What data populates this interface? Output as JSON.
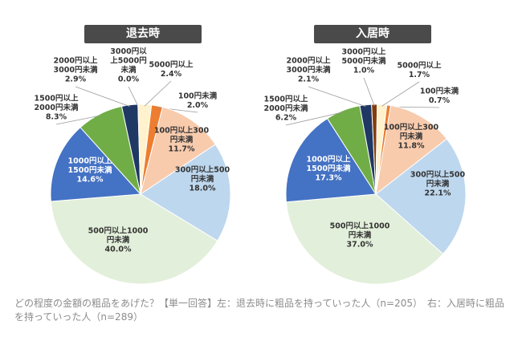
{
  "chart_data": [
    {
      "type": "pie",
      "title": "退去時",
      "slices": [
        {
          "label_lines": [
            "100円未満",
            "2.0%"
          ],
          "value": 2.0,
          "color": "#ed7d31"
        },
        {
          "label_lines": [
            "100円以上300",
            "円未満",
            "11.7%"
          ],
          "value": 11.7,
          "color": "#f8cbad"
        },
        {
          "label_lines": [
            "300円以上500",
            "円未満",
            "18.0%"
          ],
          "value": 18.0,
          "color": "#bdd7ee"
        },
        {
          "label_lines": [
            "500円以上1000",
            "円未満",
            "40.0%"
          ],
          "value": 40.0,
          "color": "#e2efda"
        },
        {
          "label_lines": [
            "1000円以上",
            "1500円未満",
            "14.6%"
          ],
          "value": 14.6,
          "color": "#4472c4"
        },
        {
          "label_lines": [
            "1500円以上",
            "2000円未満",
            "8.3%"
          ],
          "value": 8.3,
          "color": "#70ad47"
        },
        {
          "label_lines": [
            "2000円以上",
            "3000円未満",
            "2.9%"
          ],
          "value": 2.9,
          "color": "#1f3864"
        },
        {
          "label_lines": [
            "3000円以",
            "上5000円",
            "未満",
            "0.0%"
          ],
          "value": 0.0,
          "color": "#fff2cc"
        },
        {
          "label_lines": [
            "5000円以上",
            "2.4%"
          ],
          "value": 2.4,
          "color": "#fff2cc"
        }
      ]
    },
    {
      "type": "pie",
      "title": "入居時",
      "slices": [
        {
          "label_lines": [
            "100円未満",
            "0.7%"
          ],
          "value": 0.7,
          "color": "#ed7d31"
        },
        {
          "label_lines": [
            "100円以上300",
            "円未満",
            "11.8%"
          ],
          "value": 11.8,
          "color": "#f8cbad"
        },
        {
          "label_lines": [
            "300円以上500",
            "円未満",
            "22.1%"
          ],
          "value": 22.1,
          "color": "#bdd7ee"
        },
        {
          "label_lines": [
            "500円以上1000",
            "円未満",
            "37.0%"
          ],
          "value": 37.0,
          "color": "#e2efda"
        },
        {
          "label_lines": [
            "1000円以上",
            "1500円未満",
            "17.3%"
          ],
          "value": 17.3,
          "color": "#4472c4"
        },
        {
          "label_lines": [
            "1500円以上",
            "2000円未満",
            "6.2%"
          ],
          "value": 6.2,
          "color": "#70ad47"
        },
        {
          "label_lines": [
            "2000円以上",
            "3000円未満",
            "2.1%"
          ],
          "value": 2.1,
          "color": "#1f3864"
        },
        {
          "label_lines": [
            "3000円以上",
            "5000円未満",
            "1.0%"
          ],
          "value": 1.0,
          "color": "#833c0b"
        },
        {
          "label_lines": [
            "5000円以上",
            "1.7%"
          ],
          "value": 1.7,
          "color": "#fff2cc"
        }
      ]
    }
  ],
  "caption": "どの程度の金額の粗品をあげた？【単一回答】左：退去時に粗品を持っていった人（n=205）　右：入居時に粗品を持っていった人（n=289）"
}
